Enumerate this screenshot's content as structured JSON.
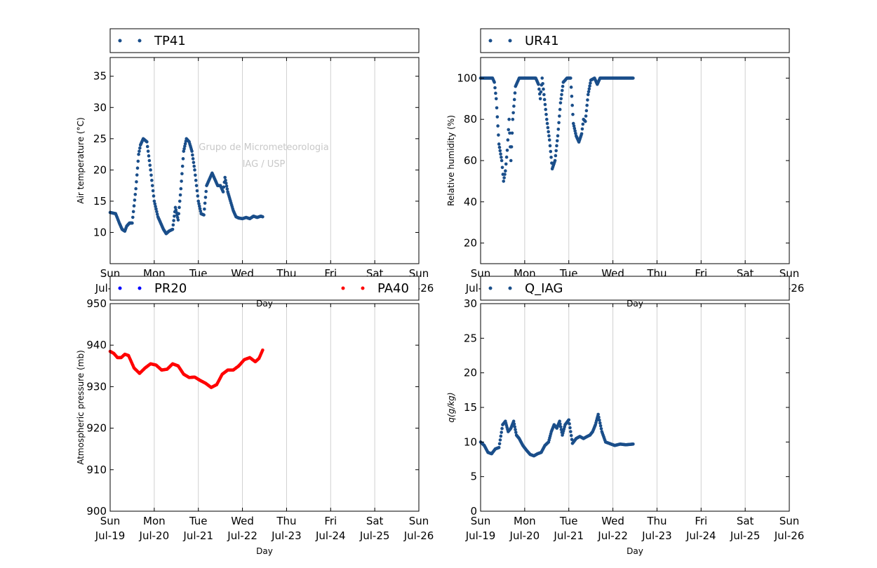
{
  "watermark": {
    "line1": "Grupo de Micrometeorologia",
    "line2": "IAG / USP"
  },
  "x_axis": {
    "label": "Day",
    "range": [
      "2015-07-19",
      "2015-07-26"
    ],
    "ticks": [
      {
        "date": "2015-07-19",
        "day": "Sun",
        "date_label": "Jul-19"
      },
      {
        "date": "2015-07-20",
        "day": "Mon",
        "date_label": "Jul-20"
      },
      {
        "date": "2015-07-21",
        "day": "Tue",
        "date_label": "Jul-21"
      },
      {
        "date": "2015-07-22",
        "day": "Wed",
        "date_label": "Jul-22"
      },
      {
        "date": "2015-07-23",
        "day": "Thu",
        "date_label": "Jul-23"
      },
      {
        "date": "2015-07-24",
        "day": "Fri",
        "date_label": "Jul-24"
      },
      {
        "date": "2015-07-25",
        "day": "Sat",
        "date_label": "Jul-25"
      },
      {
        "date": "2015-07-26",
        "day": "Sun",
        "date_label": "Jul-26"
      }
    ],
    "grid": "vertical"
  },
  "chart_data": [
    {
      "id": "temperature",
      "type": "scatter",
      "ylabel": "Air temperature (°C)",
      "ylim": [
        5,
        38
      ],
      "yticks": [
        10,
        15,
        20,
        25,
        30,
        35
      ],
      "legend_position": "above",
      "series": [
        {
          "name": "TP41",
          "color": "#1a4e8a",
          "x": [
            "2015-07-19 00:00",
            "2015-07-19 03:00",
            "2015-07-19 05:00",
            "2015-07-19 06:30",
            "2015-07-19 08:00",
            "2015-07-19 09:00",
            "2015-07-19 10:30",
            "2015-07-19 12:00",
            "2015-07-19 14:00",
            "2015-07-19 15:30",
            "2015-07-19 16:30",
            "2015-07-19 18:00",
            "2015-07-19 20:00",
            "2015-07-19 22:00",
            "2015-07-20 00:00",
            "2015-07-20 02:00",
            "2015-07-20 03:30",
            "2015-07-20 05:00",
            "2015-07-20 06:30",
            "2015-07-20 08:00",
            "2015-07-20 10:00",
            "2015-07-20 11:30",
            "2015-07-20 13:00",
            "2015-07-20 14:30",
            "2015-07-20 16:00",
            "2015-07-20 17:30",
            "2015-07-20 19:00",
            "2015-07-20 20:30",
            "2015-07-20 22:00",
            "2015-07-21 00:00",
            "2015-07-21 01:30",
            "2015-07-21 03:00",
            "2015-07-21 04:30",
            "2015-07-21 06:00",
            "2015-07-21 07:30",
            "2015-07-21 09:00",
            "2015-07-21 10:30",
            "2015-07-21 12:00",
            "2015-07-21 13:30",
            "2015-07-21 14:30",
            "2015-07-21 16:00",
            "2015-07-21 17:30",
            "2015-07-21 19:00",
            "2015-07-21 20:30",
            "2015-07-21 22:00",
            "2015-07-22 00:00",
            "2015-07-22 02:00",
            "2015-07-22 04:00",
            "2015-07-22 06:00",
            "2015-07-22 08:00",
            "2015-07-22 10:00",
            "2015-07-22 11:00"
          ],
          "y": [
            13.2,
            13.0,
            11.5,
            10.5,
            10.2,
            11.0,
            11.5,
            11.5,
            17.0,
            22.5,
            24.0,
            25.0,
            24.5,
            20.0,
            15.0,
            12.5,
            11.5,
            10.5,
            9.8,
            10.2,
            10.5,
            14.0,
            12.0,
            17.0,
            23.0,
            25.0,
            24.5,
            23.0,
            20.0,
            15.0,
            13.0,
            12.8,
            17.5,
            18.5,
            19.5,
            18.5,
            17.5,
            17.5,
            16.5,
            18.8,
            16.5,
            15.0,
            13.5,
            12.5,
            12.3,
            12.2,
            12.4,
            12.2,
            12.6,
            12.4,
            12.6,
            12.5
          ]
        }
      ]
    },
    {
      "id": "humidity",
      "type": "scatter",
      "ylabel": "Relative humidity (%)",
      "ylim": [
        10,
        110
      ],
      "yticks": [
        20,
        40,
        60,
        80,
        100
      ],
      "legend_position": "above",
      "series": [
        {
          "name": "UR41",
          "color": "#1a4e8a",
          "x": [
            "2015-07-19 00:00",
            "2015-07-19 04:00",
            "2015-07-19 06:30",
            "2015-07-19 07:30",
            "2015-07-19 08:30",
            "2015-07-19 10:00",
            "2015-07-19 11:30",
            "2015-07-19 12:30",
            "2015-07-19 13:30",
            "2015-07-19 14:30",
            "2015-07-19 15:30",
            "2015-07-19 16:30",
            "2015-07-19 17:30",
            "2015-07-19 19:00",
            "2015-07-19 21:00",
            "2015-07-20 00:00",
            "2015-07-20 03:00",
            "2015-07-20 06:00",
            "2015-07-20 07:30",
            "2015-07-20 08:30",
            "2015-07-20 09:30",
            "2015-07-20 10:30",
            "2015-07-20 12:00",
            "2015-07-20 13:30",
            "2015-07-20 15:00",
            "2015-07-20 16:30",
            "2015-07-20 18:00",
            "2015-07-20 19:30",
            "2015-07-20 21:00",
            "2015-07-20 23:00",
            "2015-07-21 01:00",
            "2015-07-21 02:30",
            "2015-07-21 04:00",
            "2015-07-21 05:30",
            "2015-07-21 07:00",
            "2015-07-21 08:00",
            "2015-07-21 09:00",
            "2015-07-21 10:30",
            "2015-07-21 12:00",
            "2015-07-21 14:00",
            "2015-07-21 15:30",
            "2015-07-21 17:00",
            "2015-07-22 00:00",
            "2015-07-22 06:00",
            "2015-07-22 11:00"
          ],
          "y": [
            100,
            100,
            100,
            98,
            90,
            68,
            60,
            50,
            55,
            65,
            80,
            60,
            80,
            96,
            100,
            100,
            100,
            100,
            97,
            90,
            100,
            92,
            80,
            70,
            56,
            60,
            72,
            88,
            98,
            100,
            100,
            78,
            72,
            69,
            73,
            80,
            79,
            92,
            99,
            100,
            97,
            100,
            100,
            100,
            100
          ]
        }
      ]
    },
    {
      "id": "pressure",
      "type": "scatter",
      "ylabel": "Atmospheric pressure (mb)",
      "ylim": [
        900,
        950
      ],
      "yticks": [
        900,
        910,
        920,
        930,
        940,
        950
      ],
      "legend_position": "above",
      "series": [
        {
          "name": "PR20",
          "color": "#0000ff",
          "x": [],
          "y": []
        },
        {
          "name": "PA40",
          "color": "#ff0000",
          "x": [
            "2015-07-19 00:00",
            "2015-07-19 02:00",
            "2015-07-19 04:00",
            "2015-07-19 06:00",
            "2015-07-19 08:00",
            "2015-07-19 10:00",
            "2015-07-19 13:00",
            "2015-07-19 16:00",
            "2015-07-19 19:00",
            "2015-07-19 22:00",
            "2015-07-20 01:00",
            "2015-07-20 04:00",
            "2015-07-20 07:00",
            "2015-07-20 10:00",
            "2015-07-20 13:00",
            "2015-07-20 16:00",
            "2015-07-20 19:00",
            "2015-07-20 22:00",
            "2015-07-21 01:00",
            "2015-07-21 04:00",
            "2015-07-21 07:00",
            "2015-07-21 10:00",
            "2015-07-21 13:00",
            "2015-07-21 16:00",
            "2015-07-21 19:00",
            "2015-07-21 22:00",
            "2015-07-22 01:00",
            "2015-07-22 04:00",
            "2015-07-22 07:00",
            "2015-07-22 09:00",
            "2015-07-22 11:00"
          ],
          "y": [
            938.5,
            938.0,
            937.0,
            937.0,
            937.8,
            937.5,
            934.5,
            933.2,
            934.5,
            935.5,
            935.2,
            934.0,
            934.2,
            935.5,
            935.0,
            933.0,
            932.2,
            932.3,
            931.5,
            930.8,
            929.8,
            930.5,
            933.0,
            934.0,
            934.0,
            935.0,
            936.5,
            937.0,
            936.0,
            936.8,
            938.8
          ]
        }
      ]
    },
    {
      "id": "specific-humidity",
      "type": "scatter",
      "ylabel": "q(g/kg)",
      "ylim": [
        0,
        30
      ],
      "yticks": [
        0,
        5,
        10,
        15,
        20,
        25,
        30
      ],
      "legend_position": "above",
      "series": [
        {
          "name": "Q_IAG",
          "color": "#1a4e8a",
          "x": [
            "2015-07-19 00:00",
            "2015-07-19 02:00",
            "2015-07-19 04:00",
            "2015-07-19 06:00",
            "2015-07-19 08:00",
            "2015-07-19 10:00",
            "2015-07-19 12:00",
            "2015-07-19 13:30",
            "2015-07-19 15:00",
            "2015-07-19 16:30",
            "2015-07-19 18:00",
            "2015-07-19 19:30",
            "2015-07-19 21:00",
            "2015-07-19 23:00",
            "2015-07-20 01:00",
            "2015-07-20 03:00",
            "2015-07-20 05:00",
            "2015-07-20 07:00",
            "2015-07-20 09:00",
            "2015-07-20 11:00",
            "2015-07-20 13:00",
            "2015-07-20 14:30",
            "2015-07-20 16:00",
            "2015-07-20 17:30",
            "2015-07-20 19:00",
            "2015-07-20 20:30",
            "2015-07-20 22:00",
            "2015-07-21 00:00",
            "2015-07-21 02:00",
            "2015-07-21 04:00",
            "2015-07-21 06:00",
            "2015-07-21 08:00",
            "2015-07-21 10:00",
            "2015-07-21 11:30",
            "2015-07-21 13:00",
            "2015-07-21 14:30",
            "2015-07-21 16:00",
            "2015-07-21 18:00",
            "2015-07-21 20:00",
            "2015-07-21 22:00",
            "2015-07-22 01:00",
            "2015-07-22 04:00",
            "2015-07-22 07:00",
            "2015-07-22 11:00"
          ],
          "y": [
            10.0,
            9.5,
            8.5,
            8.3,
            9.0,
            9.2,
            12.5,
            13.0,
            11.5,
            12.0,
            13.0,
            11.0,
            10.5,
            9.5,
            8.8,
            8.2,
            8.0,
            8.3,
            8.5,
            9.5,
            10.0,
            11.5,
            12.5,
            12.0,
            13.0,
            11.0,
            12.5,
            13.2,
            9.8,
            10.5,
            10.8,
            10.5,
            10.8,
            11.0,
            11.5,
            12.5,
            14.0,
            11.5,
            10.0,
            9.8,
            9.5,
            9.7,
            9.6,
            9.7
          ]
        }
      ]
    }
  ]
}
